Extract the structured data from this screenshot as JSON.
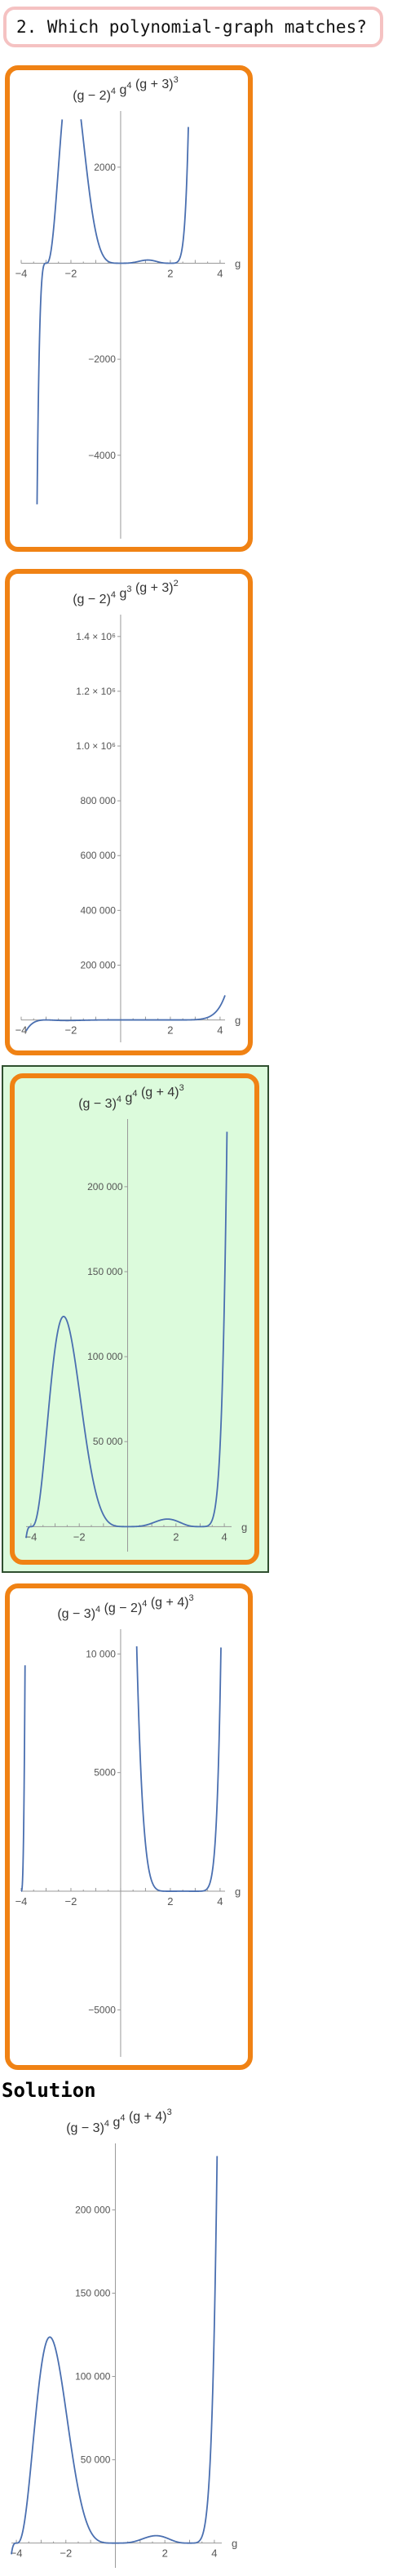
{
  "question": {
    "text": "2. Which polynomial-graph matches?"
  },
  "options": [
    {
      "title": {
        "a": "(g − 2)",
        "ea": "4",
        "b": " g",
        "eb": "4",
        "c": " (g + 3)",
        "ec": "3"
      },
      "selected": false,
      "chart_data": {
        "type": "line",
        "expression": "(g-2)^4 g^4 (g+3)^3",
        "xlabel": "g",
        "xlim": [
          -4,
          4.2
        ],
        "ylim": [
          -5500,
          3000
        ],
        "xticks": [
          -4,
          -2,
          2,
          4
        ],
        "yticks": [
          2000,
          -2000,
          -4000
        ],
        "ytick_labels": [
          "2000",
          "−2000",
          "−4000"
        ],
        "color": "#4a6fb0"
      }
    },
    {
      "title": {
        "a": "(g − 2)",
        "ea": "4",
        "b": " g",
        "eb": "3",
        "c": " (g + 3)",
        "ec": "2"
      },
      "selected": false,
      "chart_data": {
        "type": "line",
        "expression": "(g-2)^4 g^3 (g+3)^2",
        "xlabel": "g",
        "xlim": [
          -4,
          4.2
        ],
        "ylim": [
          -40000,
          1450000
        ],
        "xticks": [
          -4,
          -2,
          2,
          4
        ],
        "yticks": [
          1400000,
          1200000,
          1000000,
          800000,
          600000,
          400000,
          200000
        ],
        "ytick_labels": [
          "1.4 × 10⁶",
          "1.2 × 10⁶",
          "1.0 × 10⁶",
          "800 000",
          "600 000",
          "400 000",
          "200 000"
        ],
        "color": "#4a6fb0"
      }
    },
    {
      "title": {
        "a": "(g − 3)",
        "ea": "4",
        "b": " g",
        "eb": "4",
        "c": " (g + 4)",
        "ec": "3"
      },
      "selected": true,
      "chart_data": {
        "type": "line",
        "expression": "(g-3)^4 g^4 (g+4)^3",
        "xlabel": "g",
        "xlim": [
          -4.2,
          4.3
        ],
        "ylim": [
          -8000,
          235000
        ],
        "xticks": [
          -4,
          -2,
          2,
          4
        ],
        "yticks": [
          200000,
          150000,
          100000,
          50000
        ],
        "ytick_labels": [
          "200 000",
          "150 000",
          "100 000",
          "50 000"
        ],
        "color": "#4a6fb0"
      }
    },
    {
      "title": {
        "a": "(g − 3)",
        "ea": "4",
        "b": " (g − 2)",
        "eb": "4",
        "c": " (g + 4)",
        "ec": "3"
      },
      "selected": false,
      "chart_data": {
        "type": "line",
        "expression": "(g-3)^4 (g-2)^4 (g+4)^3",
        "xlabel": "g",
        "xlim": [
          -4,
          4.2
        ],
        "ylim": [
          -6500,
          10700
        ],
        "xticks": [
          -4,
          -2,
          2,
          4
        ],
        "yticks": [
          10000,
          5000,
          -5000
        ],
        "ytick_labels": [
          "10 000",
          "5000",
          "−5000"
        ],
        "color": "#4a6fb0"
      }
    }
  ],
  "solution": {
    "heading": "Solution",
    "title": {
      "a": "(g − 3)",
      "ea": "4",
      "b": " g",
      "eb": "4",
      "c": " (g + 4)",
      "ec": "3"
    },
    "chart_data": {
      "type": "line",
      "expression": "(g-3)^4 g^4 (g+4)^3",
      "xlabel": "g",
      "xlim": [
        -4.2,
        4.3
      ],
      "ylim": [
        -8000,
        235000
      ],
      "xticks": [
        -4,
        -2,
        2,
        4
      ],
      "yticks": [
        200000,
        150000,
        100000,
        50000
      ],
      "ytick_labels": [
        "200 000",
        "150 000",
        "100 000",
        "50 000"
      ],
      "color": "#4a6fb0"
    }
  }
}
